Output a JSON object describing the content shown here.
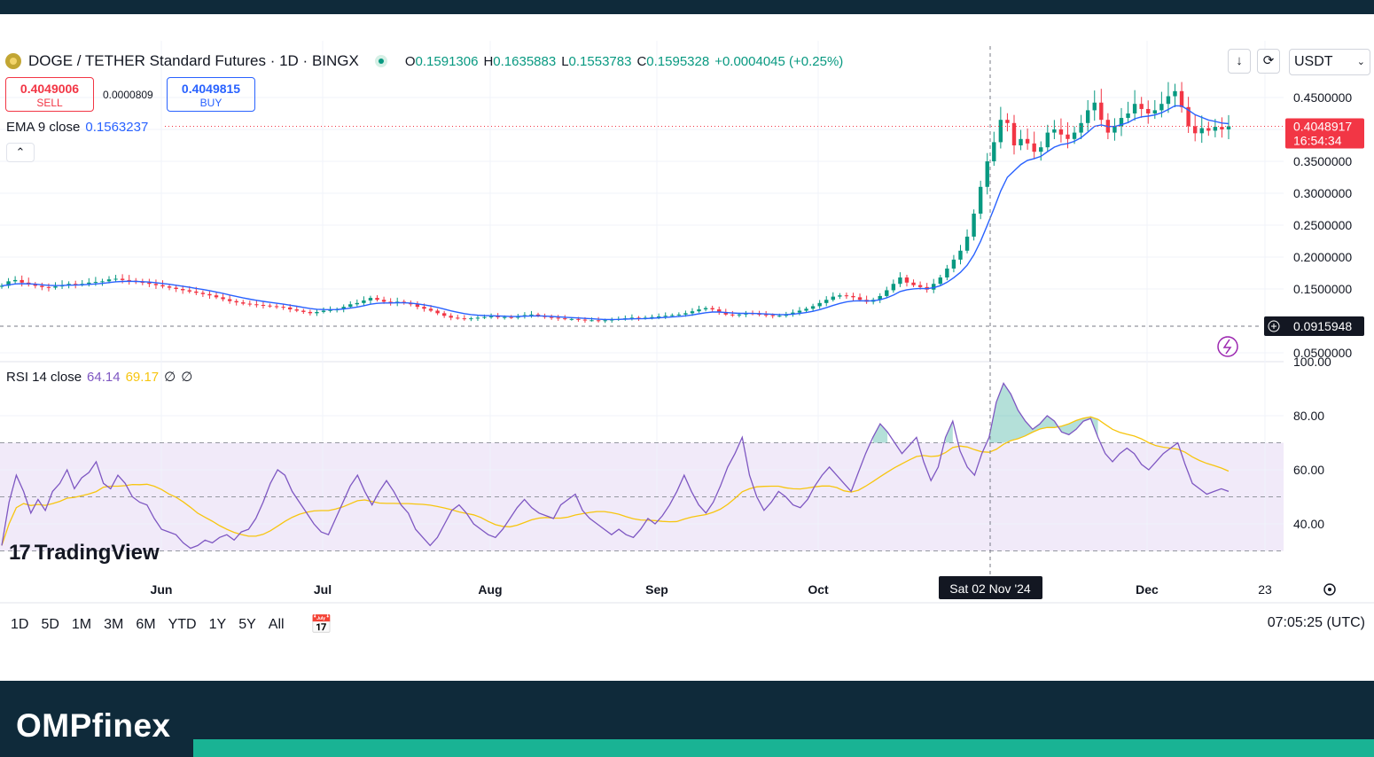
{
  "symbol": {
    "name": "DOGE / TETHER Standard Futures · 1D · BINGX",
    "ohlc": [
      {
        "k": "O",
        "v": "0.1591306"
      },
      {
        "k": "H",
        "v": "0.1635883"
      },
      {
        "k": "L",
        "v": "0.1553783"
      },
      {
        "k": "C",
        "v": "0.1595328"
      }
    ],
    "change": "+0.0004045 (+0.25%)"
  },
  "trade": {
    "sell_price": "0.4049006",
    "sell_label": "SELL",
    "spread": "0.0000809",
    "buy_price": "0.4049815",
    "buy_label": "BUY"
  },
  "ema": {
    "label": "EMA 9 close",
    "value": "0.1563237"
  },
  "rsi_legend": {
    "label": "RSI 14 close",
    "rsi_value": "64.14",
    "ma_value": "69.17",
    "s1": "∅",
    "s2": "∅"
  },
  "toolbar": {
    "currency": "USDT",
    "download_icon": "↓",
    "refresh_icon": "⟳",
    "collapse_icon": "⌃"
  },
  "watermark": {
    "logo": "17",
    "text": "TradingView"
  },
  "ranges": [
    "1D",
    "5D",
    "1M",
    "3M",
    "6M",
    "YTD",
    "1Y",
    "5Y",
    "All"
  ],
  "clock": "07:05:25 (UTC)",
  "footer": {
    "brand": "OMPfinex"
  },
  "colors": {
    "up": "#089981",
    "down": "#f23645",
    "ema": "#2962ff",
    "rsi": "#7e57c2",
    "rsi_ma": "#f7c50f"
  },
  "chart_data": [
    {
      "type": "candlestick",
      "title": "DOGE / TETHER Standard Futures · 1D · BINGX",
      "x_ticks": [
        "Jun",
        "Jul",
        "Aug",
        "Sep",
        "Oct",
        "Dec",
        "23"
      ],
      "crosshair_label": "Sat 02 Nov '24",
      "y_ticks": [
        "0.4500000",
        "0.3500000",
        "0.3000000",
        "0.2500000",
        "0.2000000",
        "0.1500000",
        "0.0500000"
      ],
      "ylim": [
        0.05,
        0.48
      ],
      "last_price_label": "0.4048917",
      "countdown": "16:54:34",
      "crosshair_price": "0.0915948",
      "close_series": [
        0.155,
        0.162,
        0.164,
        0.16,
        0.157,
        0.155,
        0.153,
        0.152,
        0.154,
        0.156,
        0.158,
        0.157,
        0.158,
        0.16,
        0.161,
        0.162,
        0.165,
        0.166,
        0.164,
        0.163,
        0.161,
        0.16,
        0.158,
        0.156,
        0.154,
        0.152,
        0.15,
        0.148,
        0.146,
        0.144,
        0.142,
        0.14,
        0.137,
        0.134,
        0.131,
        0.129,
        0.127,
        0.126,
        0.125,
        0.124,
        0.123,
        0.122,
        0.121,
        0.118,
        0.116,
        0.114,
        0.112,
        0.114,
        0.116,
        0.117,
        0.118,
        0.122,
        0.126,
        0.128,
        0.132,
        0.136,
        0.133,
        0.13,
        0.128,
        0.13,
        0.128,
        0.126,
        0.122,
        0.119,
        0.116,
        0.112,
        0.108,
        0.105,
        0.104,
        0.103,
        0.104,
        0.105,
        0.106,
        0.107,
        0.106,
        0.106,
        0.105,
        0.107,
        0.109,
        0.11,
        0.108,
        0.106,
        0.105,
        0.104,
        0.103,
        0.103,
        0.102,
        0.101,
        0.101,
        0.1,
        0.101,
        0.102,
        0.103,
        0.104,
        0.105,
        0.104,
        0.105,
        0.106,
        0.107,
        0.108,
        0.109,
        0.11,
        0.112,
        0.115,
        0.118,
        0.12,
        0.118,
        0.114,
        0.11,
        0.109,
        0.11,
        0.112,
        0.111,
        0.11,
        0.109,
        0.108,
        0.108,
        0.11,
        0.113,
        0.116,
        0.119,
        0.123,
        0.128,
        0.133,
        0.138,
        0.14,
        0.139,
        0.137,
        0.133,
        0.13,
        0.133,
        0.139,
        0.148,
        0.158,
        0.168,
        0.16,
        0.156,
        0.153,
        0.149,
        0.158,
        0.168,
        0.182,
        0.196,
        0.21,
        0.232,
        0.268,
        0.31,
        0.35,
        0.38,
        0.415,
        0.41,
        0.375,
        0.385,
        0.378,
        0.365,
        0.372,
        0.395,
        0.4,
        0.392,
        0.385,
        0.395,
        0.41,
        0.43,
        0.442,
        0.415,
        0.395,
        0.405,
        0.418,
        0.425,
        0.44,
        0.432,
        0.425,
        0.43,
        0.44,
        0.452,
        0.46,
        0.435,
        0.405,
        0.394,
        0.402,
        0.398,
        0.404,
        0.4,
        0.4049
      ]
    },
    {
      "type": "line",
      "title": "RSI 14 close",
      "y_ticks": [
        "100.00",
        "80.00",
        "60.00",
        "40.00"
      ],
      "ylim": [
        26,
        100
      ],
      "bands": {
        "upper": 70,
        "middle": 50,
        "lower": 30
      },
      "rsi_series": [
        32,
        48,
        58,
        52,
        44,
        49,
        45,
        52,
        55,
        60,
        53,
        57,
        59,
        63,
        55,
        53,
        58,
        55,
        50,
        48,
        47,
        42,
        38,
        37,
        36,
        33,
        31,
        32,
        34,
        33,
        35,
        36,
        34,
        37,
        38,
        42,
        48,
        55,
        60,
        58,
        52,
        48,
        44,
        40,
        37,
        36,
        42,
        48,
        54,
        58,
        52,
        47,
        52,
        56,
        52,
        47,
        44,
        38,
        35,
        32,
        35,
        40,
        45,
        47,
        44,
        40,
        38,
        36,
        35,
        38,
        42,
        46,
        49,
        46,
        44,
        43,
        42,
        47,
        49,
        51,
        45,
        42,
        40,
        38,
        36,
        38,
        36,
        35,
        38,
        42,
        40,
        43,
        47,
        52,
        58,
        52,
        47,
        44,
        48,
        54,
        61,
        66,
        72,
        58,
        50,
        45,
        48,
        52,
        50,
        47,
        46,
        49,
        54,
        58,
        61,
        58,
        55,
        52,
        59,
        66,
        72,
        77,
        74,
        70,
        66,
        69,
        72,
        63,
        56,
        61,
        72,
        78,
        67,
        61,
        58,
        66,
        72,
        85,
        92,
        88,
        82,
        78,
        75,
        77,
        80,
        78,
        74,
        73,
        75,
        78,
        79,
        72,
        66,
        63,
        66,
        68,
        66,
        62,
        60,
        63,
        66,
        68,
        70,
        62,
        55,
        53,
        51,
        52,
        53,
        52
      ]
    }
  ]
}
